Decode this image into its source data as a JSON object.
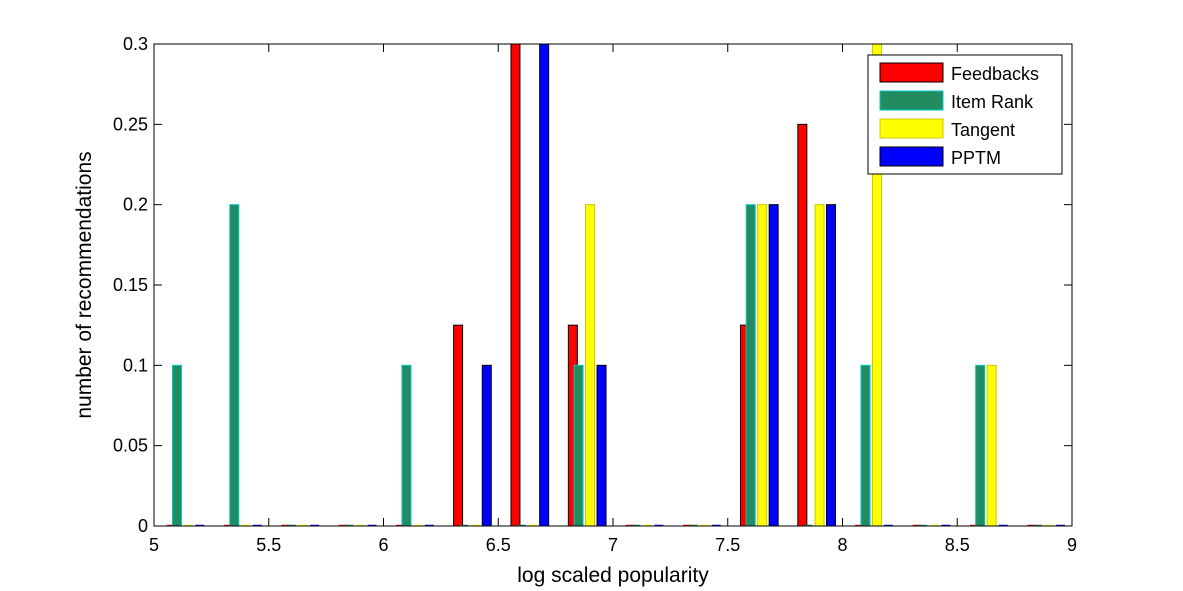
{
  "chart_data": {
    "type": "bar",
    "title": "",
    "xlabel": "log scaled popularity",
    "ylabel": "number of recommendations",
    "xlim": [
      5,
      9
    ],
    "ylim": [
      0,
      0.3
    ],
    "xticks": [
      "5",
      "5.5",
      "6",
      "6.5",
      "7",
      "7.5",
      "8",
      "8.5",
      "9"
    ],
    "yticks": [
      "0",
      "0.05",
      "0.1",
      "0.15",
      "0.2",
      "0.25",
      "0.3"
    ],
    "legend_position": "top-right",
    "series": [
      {
        "name": "Feedbacks",
        "color": "#ff0000",
        "x": [
          5.075,
          5.325,
          5.575,
          5.825,
          6.075,
          6.325,
          6.575,
          6.825,
          7.075,
          7.325,
          7.575,
          7.825,
          8.075,
          8.325,
          8.575,
          8.825
        ],
        "values": [
          0,
          0,
          0,
          0,
          0,
          0.125,
          0.3,
          0.125,
          0,
          0,
          0.125,
          0.25,
          0,
          0,
          0,
          0
        ]
      },
      {
        "name": "Item Rank",
        "color": "#228b5f",
        "edge": "#00c8c8",
        "x": [
          5.1,
          5.35,
          5.6,
          5.85,
          6.1,
          6.35,
          6.6,
          6.85,
          7.1,
          7.35,
          7.6,
          7.85,
          8.1,
          8.35,
          8.6,
          8.85
        ],
        "values": [
          0.1,
          0.2,
          0,
          0,
          0.1,
          0,
          0,
          0.1,
          0,
          0,
          0.2,
          0,
          0.1,
          0,
          0.1,
          0
        ]
      },
      {
        "name": "Tangent",
        "color": "#ffff00",
        "x": [
          5.15,
          5.4,
          5.65,
          5.9,
          6.15,
          6.4,
          6.65,
          6.9,
          7.15,
          7.4,
          7.65,
          7.9,
          8.15,
          8.4,
          8.65,
          8.9
        ],
        "values": [
          0,
          0,
          0,
          0,
          0,
          0,
          0,
          0.2,
          0,
          0,
          0.2,
          0.2,
          0.3,
          0,
          0.1,
          0
        ]
      },
      {
        "name": "PPTM",
        "color": "#0000ff",
        "x": [
          5.2,
          5.45,
          5.7,
          5.95,
          6.2,
          6.45,
          6.7,
          6.95,
          7.2,
          7.45,
          7.7,
          7.95,
          8.2,
          8.45,
          8.7,
          8.95
        ],
        "values": [
          0,
          0,
          0,
          0,
          0,
          0.1,
          0.3,
          0.1,
          0,
          0,
          0.2,
          0.2,
          0,
          0,
          0,
          0
        ]
      }
    ]
  }
}
